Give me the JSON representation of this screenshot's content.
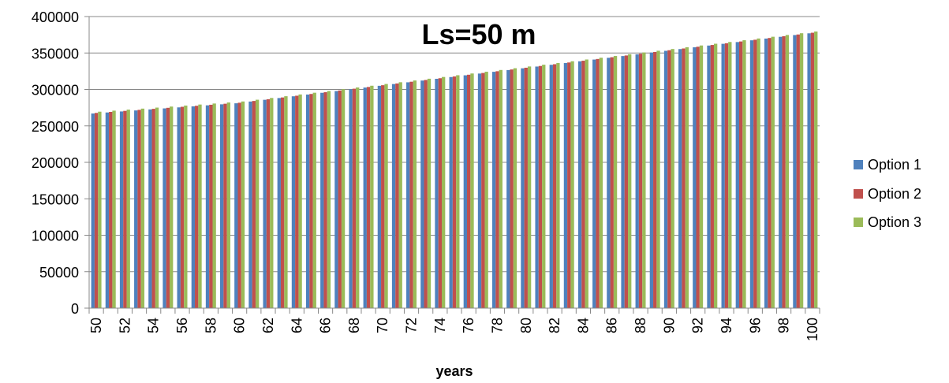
{
  "chart_data": {
    "type": "bar",
    "title": "Ls=50 m",
    "xlabel": "years",
    "ylabel": "",
    "ylim": [
      0,
      400000
    ],
    "yticks": [
      0,
      50000,
      100000,
      150000,
      200000,
      250000,
      300000,
      350000,
      400000
    ],
    "categories": [
      "50",
      "51",
      "52",
      "53",
      "54",
      "55",
      "56",
      "57",
      "58",
      "59",
      "60",
      "61",
      "62",
      "63",
      "64",
      "65",
      "66",
      "67",
      "68",
      "69",
      "70",
      "71",
      "72",
      "73",
      "74",
      "75",
      "76",
      "77",
      "78",
      "79",
      "80",
      "81",
      "82",
      "83",
      "84",
      "85",
      "86",
      "87",
      "88",
      "89",
      "90",
      "91",
      "92",
      "93",
      "94",
      "95",
      "96",
      "97",
      "98",
      "99",
      "100"
    ],
    "tick_labels": [
      "50",
      "52",
      "54",
      "56",
      "58",
      "60",
      "62",
      "64",
      "66",
      "68",
      "70",
      "72",
      "74",
      "76",
      "78",
      "80",
      "82",
      "84",
      "86",
      "88",
      "90",
      "92",
      "94",
      "96",
      "98",
      "100"
    ],
    "grid": true,
    "legend_position": "right",
    "series": [
      {
        "name": "Option 1",
        "color": "#4F81BD",
        "values": [
          267000,
          268400,
          269800,
          271200,
          272600,
          274000,
          275400,
          276800,
          278200,
          279600,
          281000,
          283400,
          285800,
          288200,
          290600,
          293000,
          295400,
          297800,
          300200,
          302600,
          305000,
          307400,
          309800,
          312200,
          314600,
          317000,
          319400,
          321800,
          324200,
          326600,
          329000,
          331400,
          333800,
          336200,
          338600,
          341000,
          343400,
          345800,
          348200,
          350600,
          353000,
          355400,
          357800,
          360200,
          362600,
          365000,
          367400,
          369800,
          372200,
          374600,
          377000
        ]
      },
      {
        "name": "Option 2",
        "color": "#C0504D",
        "values": [
          267800,
          269200,
          270600,
          272000,
          273400,
          274800,
          276200,
          277600,
          279000,
          280400,
          281800,
          284200,
          286600,
          289000,
          291400,
          293800,
          296200,
          298600,
          301000,
          303400,
          305800,
          308200,
          310600,
          313000,
          315400,
          317800,
          320200,
          322600,
          325000,
          327400,
          329800,
          332200,
          334600,
          337000,
          339400,
          341800,
          344200,
          346600,
          349000,
          351400,
          353800,
          356200,
          358600,
          361000,
          363400,
          365800,
          368200,
          370600,
          373000,
          375400,
          377800
        ]
      },
      {
        "name": "Option 3",
        "color": "#9BBB59",
        "values": [
          269500,
          270900,
          272300,
          273700,
          275100,
          276500,
          277900,
          279300,
          280700,
          282100,
          283500,
          285900,
          288300,
          290700,
          293100,
          295500,
          297900,
          300300,
          302700,
          305100,
          307500,
          309900,
          312300,
          314700,
          317100,
          319500,
          321900,
          324300,
          326700,
          329100,
          331500,
          333900,
          336300,
          338700,
          341100,
          343500,
          345900,
          348300,
          350700,
          353100,
          355500,
          357900,
          360300,
          362700,
          365100,
          367500,
          369900,
          372300,
          374700,
          377100,
          379500
        ]
      }
    ]
  }
}
